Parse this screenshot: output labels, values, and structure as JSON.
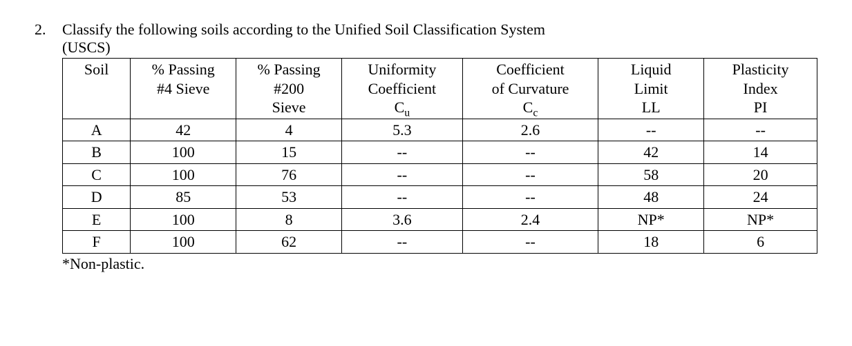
{
  "problem": {
    "number": "2.",
    "prompt_line1": "Classify the following soils according to the Unified Soil Classification System",
    "prompt_line2": "(USCS)"
  },
  "table": {
    "headers": {
      "soil": "Soil",
      "p4_l1": "% Passing",
      "p4_l2": "#4 Sieve",
      "p200_l1": "% Passing",
      "p200_l2": "#200",
      "p200_l3": "Sieve",
      "cu_l1": "Uniformity",
      "cu_l2": "Coefficient",
      "cu_sym_pre": "C",
      "cu_sym_sub": "u",
      "cc_l1": "Coefficient",
      "cc_l2": "of Curvature",
      "cc_sym_pre": "C",
      "cc_sym_sub": "c",
      "ll_l1": "Liquid",
      "ll_l2": "Limit",
      "ll_l3": "LL",
      "pi_l1": "Plasticity",
      "pi_l2": "Index",
      "pi_l3": "PI"
    },
    "rows": [
      {
        "soil": "A",
        "p4": "42",
        "p200": "4",
        "cu": "5.3",
        "cc": "2.6",
        "ll": "--",
        "pi": "--"
      },
      {
        "soil": "B",
        "p4": "100",
        "p200": "15",
        "cu": "--",
        "cc": "--",
        "ll": "42",
        "pi": "14"
      },
      {
        "soil": "C",
        "p4": "100",
        "p200": "76",
        "cu": "--",
        "cc": "--",
        "ll": "58",
        "pi": "20"
      },
      {
        "soil": "D",
        "p4": "85",
        "p200": "53",
        "cu": "--",
        "cc": "--",
        "ll": "48",
        "pi": "24"
      },
      {
        "soil": "E",
        "p4": "100",
        "p200": "8",
        "cu": "3.6",
        "cc": "2.4",
        "ll": "NP*",
        "pi": "NP*"
      },
      {
        "soil": "F",
        "p4": "100",
        "p200": "62",
        "cu": "--",
        "cc": "--",
        "ll": "18",
        "pi": "6"
      }
    ]
  },
  "footnote": "*Non-plastic.",
  "style": {
    "font_family": "Times New Roman",
    "font_size_pt": 16,
    "text_color": "#000000",
    "background_color": "#ffffff",
    "border_color": "#000000",
    "column_widths_pct": [
      9,
      14,
      14,
      16,
      18,
      14,
      15
    ]
  }
}
